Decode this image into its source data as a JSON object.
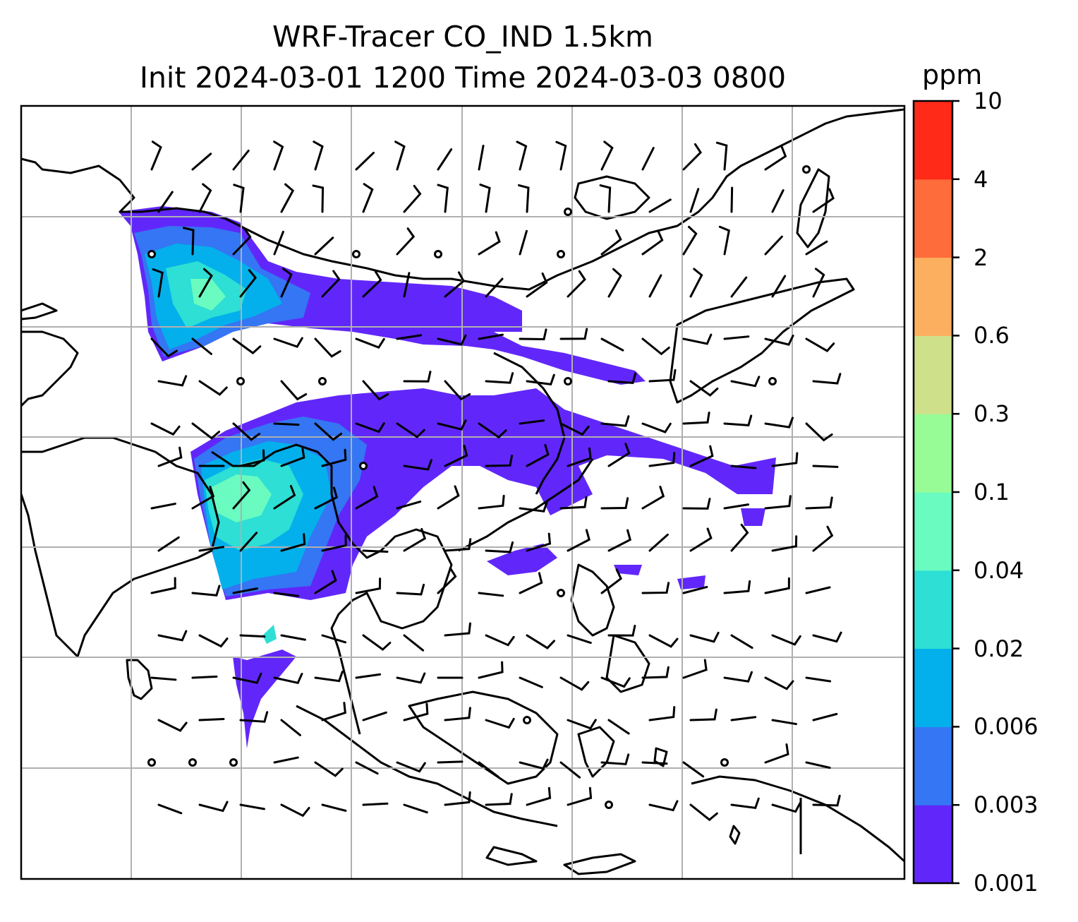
{
  "title": {
    "line1": "WRF-Tracer CO_IND 1.5km",
    "line2": "Init 2024-03-01 1200 Time 2024-03-03 0800"
  },
  "colorbar": {
    "label": "ppm",
    "ticks": [
      "0.001",
      "0.003",
      "0.006",
      "0.02",
      "0.04",
      "0.1",
      "0.3",
      "0.6",
      "2",
      "4",
      "10"
    ],
    "colors": [
      "#6127fa",
      "#3476f3",
      "#03b0ec",
      "#2ddfd4",
      "#6afbc0",
      "#98fc96",
      "#cfe08a",
      "#fdaf60",
      "#ff6c3b",
      "#ff2a17"
    ]
  },
  "map": {
    "gridlines": true,
    "legend_location": "right",
    "fill_colors": {
      "light_fill": "#6127fa",
      "low": "#3476f3",
      "mid": "#03b0ec",
      "higher": "#2ddfd4",
      "peak": "#6afbc0"
    },
    "line_color": "#000000",
    "grid_color": "#b0b0b0"
  }
}
